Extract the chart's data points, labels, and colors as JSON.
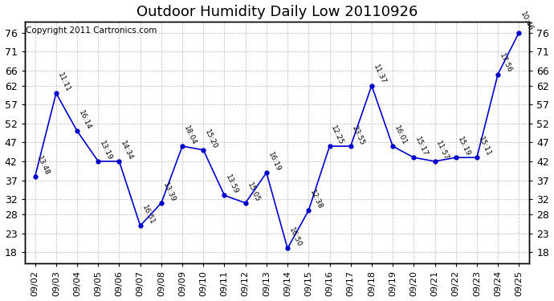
{
  "title": "Outdoor Humidity Daily Low 20110926",
  "copyright": "Copyright 2011 Cartronics.com",
  "x_labels": [
    "09/02",
    "09/03",
    "09/04",
    "09/05",
    "09/06",
    "09/07",
    "09/08",
    "09/09",
    "09/10",
    "09/11",
    "09/12",
    "09/13",
    "09/14",
    "09/15",
    "09/16",
    "09/17",
    "09/18",
    "09/19",
    "09/20",
    "09/21",
    "09/22",
    "09/23",
    "09/24",
    "09/25"
  ],
  "y_values": [
    38,
    60,
    50,
    42,
    42,
    25,
    31,
    46,
    45,
    33,
    31,
    39,
    19,
    29,
    46,
    46,
    62,
    46,
    43,
    42,
    43,
    43,
    65,
    76
  ],
  "time_labels": [
    "13:48",
    "11:11",
    "16:14",
    "13:19",
    "14:34",
    "16:51",
    "13:39",
    "18:04",
    "15:20",
    "13:59",
    "15:05",
    "16:19",
    "16:50",
    "12:38",
    "12:25",
    "23:55",
    "11:37",
    "16:01",
    "15:17",
    "11:57",
    "15:19",
    "15:11",
    "17:56",
    "10:46"
  ],
  "y_ticks": [
    18,
    23,
    28,
    32,
    37,
    42,
    47,
    52,
    57,
    62,
    66,
    71,
    76
  ],
  "ylim": [
    15,
    79
  ],
  "line_color": "#0000cc",
  "marker_color": "#0000cc",
  "background_color": "#ffffff",
  "plot_bg_color": "#ffffff",
  "grid_color": "#aaaaaa",
  "title_fontsize": 13,
  "label_fontsize": 8,
  "copyright_fontsize": 7.5
}
